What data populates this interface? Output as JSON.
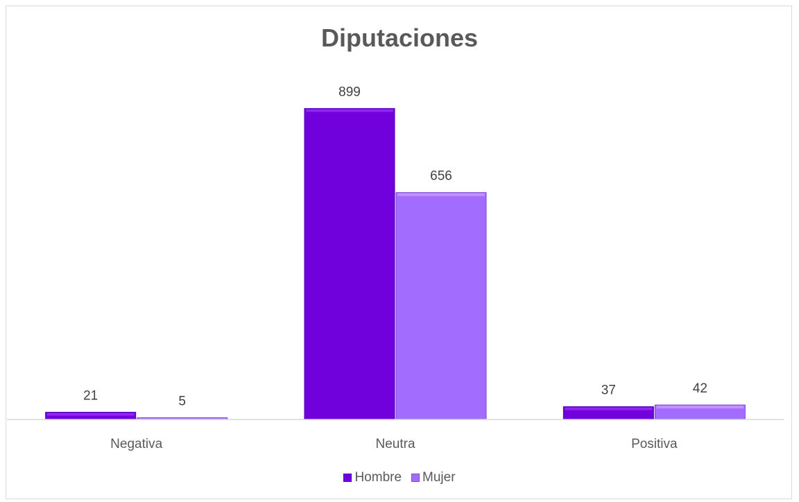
{
  "chart_data": {
    "type": "bar",
    "title": "Diputaciones",
    "xlabel": "",
    "ylabel": "",
    "categories": [
      "Negativa",
      "Neutra",
      "Positiva"
    ],
    "series": [
      {
        "name": "Hombre",
        "values": [
          21,
          899,
          37
        ],
        "color": "#7000DC"
      },
      {
        "name": "Mujer",
        "values": [
          5,
          656,
          42
        ],
        "color": "#A26CFF"
      }
    ],
    "ylim": [
      0,
      960
    ],
    "grid": false,
    "legend": "bottom",
    "data_labels": true
  }
}
